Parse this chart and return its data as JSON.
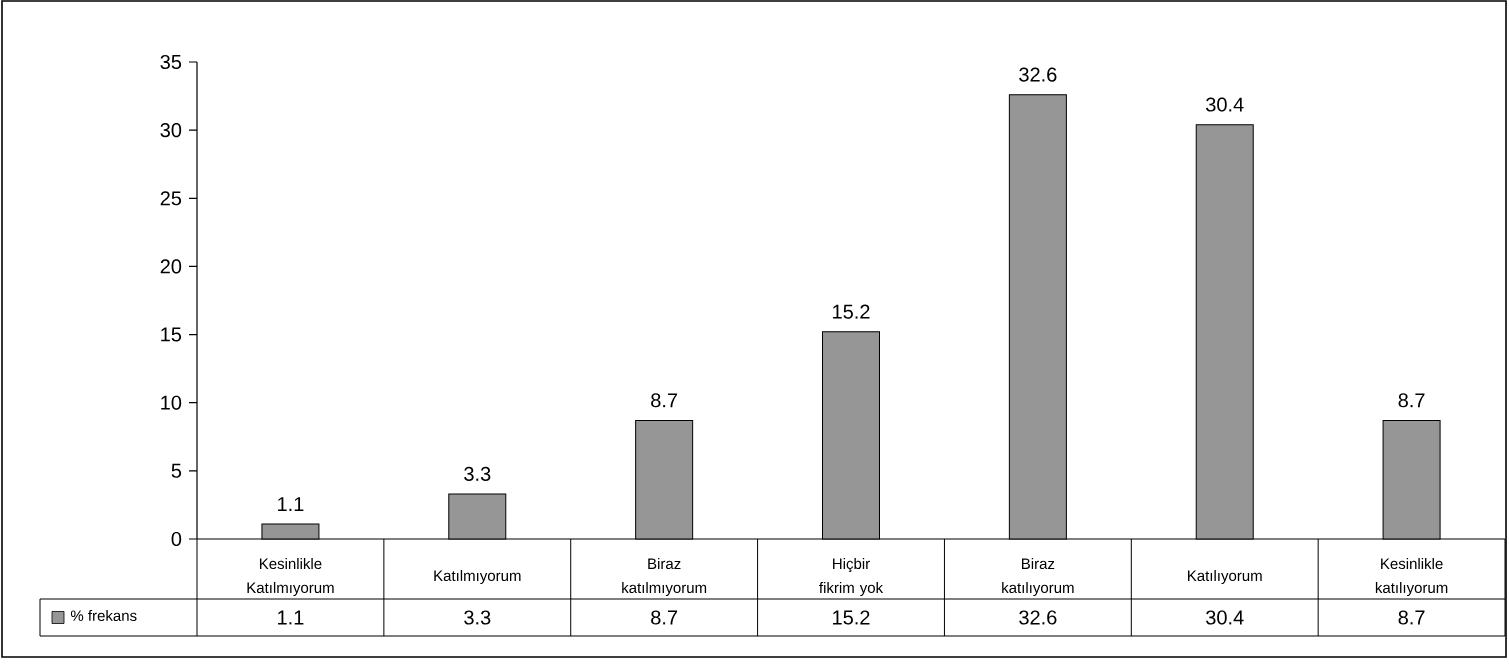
{
  "chart_data": {
    "type": "bar",
    "categories": [
      "Kesinlikle Katılmıyorum",
      "Katılmıyorum",
      "Biraz katılmıyorum",
      "Hiçbir fikrim yok",
      "Biraz katılıyorum",
      "Katılıyorum",
      "Kesinlikle katılıyorum"
    ],
    "series": [
      {
        "name": "% frekans",
        "color": "#969696",
        "values": [
          1.1,
          3.3,
          8.7,
          15.2,
          32.6,
          30.4,
          8.7
        ],
        "value_labels": [
          "1.1",
          "3.3",
          "8.7",
          "15.2",
          "32.6",
          "30.4",
          "8.7"
        ]
      }
    ],
    "ylim": [
      0,
      35
    ],
    "yticks": [
      0,
      5,
      10,
      15,
      20,
      25,
      30,
      35
    ],
    "legend": "bottom left",
    "grid": false
  }
}
